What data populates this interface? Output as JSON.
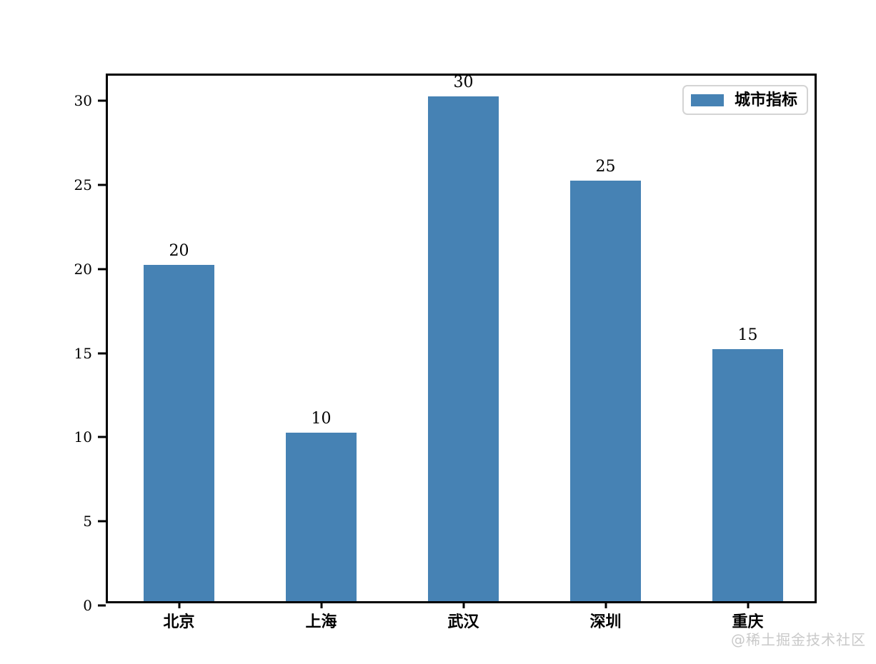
{
  "chart_data": {
    "type": "bar",
    "title": "",
    "xlabel": "",
    "ylabel": "",
    "categories": [
      "北京",
      "上海",
      "武汉",
      "深圳",
      "重庆"
    ],
    "values": [
      20,
      10,
      30,
      25,
      15
    ],
    "bar_value_labels": [
      "20",
      "10",
      "30",
      "25",
      "15"
    ],
    "series": [
      {
        "name": "城市指标",
        "values": [
          20,
          10,
          30,
          25,
          15
        ]
      }
    ],
    "legend": {
      "label": "城市指标",
      "position": "upper right"
    },
    "yticks": [
      "0",
      "5",
      "10",
      "15",
      "20",
      "25",
      "30"
    ],
    "ytick_values": [
      0,
      5,
      10,
      15,
      20,
      25,
      30
    ],
    "ylim": [
      0,
      31.5
    ],
    "bar_color": "#4682B4",
    "bar_width_fraction": 0.5,
    "grid": false,
    "value_labels_shown": true
  },
  "watermark": {
    "text": "@稀土掘金技术社区"
  }
}
